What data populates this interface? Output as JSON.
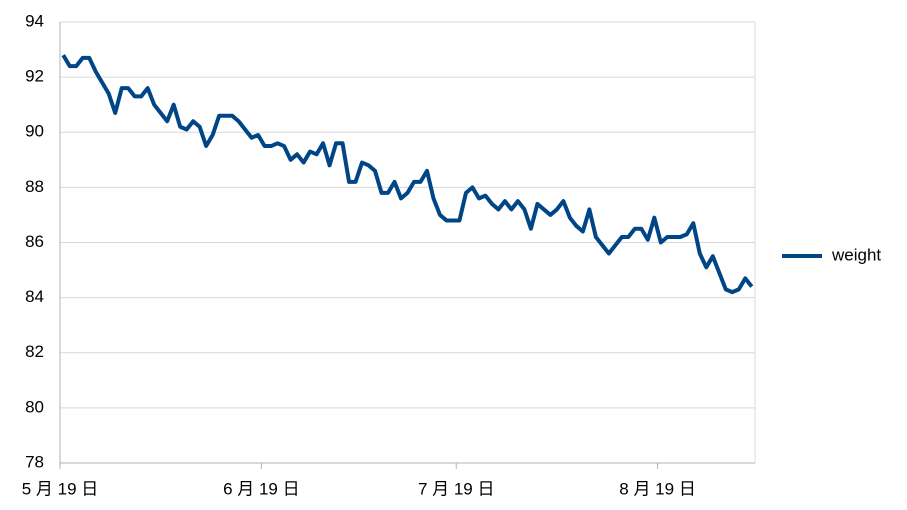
{
  "chart_data": {
    "type": "line",
    "categories": [
      "5 月 19 日",
      null,
      null,
      null,
      null,
      null,
      null,
      null,
      null,
      null,
      null,
      null,
      null,
      null,
      null,
      null,
      null,
      null,
      null,
      null,
      null,
      null,
      null,
      null,
      null,
      null,
      null,
      null,
      null,
      null,
      null,
      "6 月 19 日",
      null,
      null,
      null,
      null,
      null,
      null,
      null,
      null,
      null,
      null,
      null,
      null,
      null,
      null,
      null,
      null,
      null,
      null,
      null,
      null,
      null,
      null,
      null,
      null,
      null,
      null,
      null,
      null,
      null,
      "7 月 19 日",
      null,
      null,
      null,
      null,
      null,
      null,
      null,
      null,
      null,
      null,
      null,
      null,
      null,
      null,
      null,
      null,
      null,
      null,
      null,
      null,
      null,
      null,
      null,
      null,
      null,
      null,
      null,
      null,
      null,
      null,
      "8 月 19 日",
      null,
      null,
      null,
      null,
      null,
      null,
      null,
      null,
      null,
      null,
      null,
      null,
      null,
      null
    ],
    "series": [
      {
        "name": "weight",
        "color": "#004586",
        "values": [
          92.8,
          92.4,
          92.4,
          92.7,
          92.7,
          92.2,
          91.8,
          91.4,
          90.7,
          91.6,
          91.6,
          91.3,
          91.3,
          91.6,
          91.0,
          90.7,
          90.4,
          91.0,
          90.2,
          90.1,
          90.4,
          90.2,
          89.5,
          89.9,
          90.6,
          90.6,
          90.6,
          90.4,
          90.1,
          89.8,
          89.9,
          89.5,
          89.5,
          89.6,
          89.5,
          89.0,
          89.2,
          88.9,
          89.3,
          89.2,
          89.6,
          88.8,
          89.6,
          89.6,
          88.2,
          88.2,
          88.9,
          88.8,
          88.6,
          87.8,
          87.8,
          88.2,
          87.6,
          87.8,
          88.2,
          88.2,
          88.6,
          87.6,
          87.0,
          86.8,
          86.8,
          86.8,
          87.8,
          88.0,
          87.6,
          87.7,
          87.4,
          87.2,
          87.5,
          87.2,
          87.5,
          87.2,
          86.5,
          87.4,
          87.2,
          87.0,
          87.2,
          87.5,
          86.9,
          86.6,
          86.4,
          87.2,
          86.2,
          85.9,
          85.6,
          85.9,
          86.2,
          86.2,
          86.5,
          86.5,
          86.1,
          86.9,
          86.0,
          86.2,
          86.2,
          86.2,
          86.3,
          86.7,
          85.6,
          85.1,
          85.5,
          84.9,
          84.3,
          84.2,
          84.3,
          84.7,
          84.4
        ]
      }
    ],
    "ylim": [
      78,
      94
    ],
    "yticks": [
      78,
      80,
      82,
      84,
      86,
      88,
      90,
      92,
      94
    ],
    "grid": true,
    "legend": "right"
  }
}
